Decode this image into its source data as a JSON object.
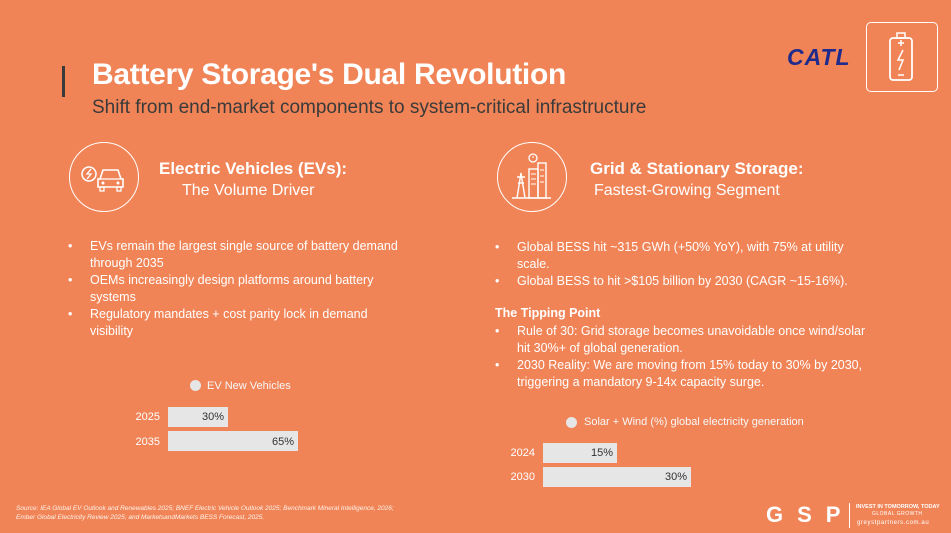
{
  "header": {
    "title": "Battery Storage's Dual Revolution",
    "subtitle": "Shift from end-market components to system-critical infrastructure"
  },
  "logo": {
    "text": "CATL"
  },
  "ev_section": {
    "title": "Electric Vehicles (EVs):",
    "subtitle": "The Volume Driver",
    "icon": "car-charging-icon",
    "bullets": [
      "EVs remain the largest single source of battery demand through 2035",
      "OEMs increasingly design platforms around battery systems",
      "Regulatory mandates + cost parity lock in demand visibility"
    ]
  },
  "grid_section": {
    "title": "Grid & Stationary Storage:",
    "subtitle": "Fastest-Growing Segment",
    "icon": "grid-tower-icon",
    "bullets": [
      "Global BESS hit ~315 GWh (+50% YoY), with 75% at utility scale.",
      "Global BESS to hit >$105 billion by 2030 (CAGR ~15-16%)."
    ],
    "tipping_title": "The Tipping Point",
    "tipping_bullets": [
      "Rule of 30: Grid storage becomes unavoidable once wind/solar hit 30%+ of global generation.",
      "2030 Reality: We are moving from 15% today to 30% by 2030, triggering a mandatory 9-14x capacity surge."
    ]
  },
  "chart_data": [
    {
      "type": "bar",
      "orientation": "horizontal",
      "categories": [
        "2025",
        "2035"
      ],
      "series": [
        {
          "name": "EV New Vehicles",
          "values": [
            30,
            65
          ]
        }
      ],
      "value_labels": [
        "30%",
        "65%"
      ],
      "xlim": [
        0,
        100
      ],
      "legend": "top",
      "grid": false,
      "color": "#e6e6e6"
    },
    {
      "type": "bar",
      "orientation": "horizontal",
      "categories": [
        "2024",
        "2030"
      ],
      "series": [
        {
          "name": "Solar + Wind (%) global electricity generation",
          "values": [
            15,
            30
          ]
        }
      ],
      "value_labels": [
        "15%",
        "30%"
      ],
      "xlim": [
        0,
        60
      ],
      "legend": "top",
      "grid": false,
      "color": "#e6e6e6"
    }
  ],
  "footer": {
    "source": "Source: IEA Global EV Outlook and Renewables 2025; BNEF Electric Vehicle Outlook 2025; Benchmark Mineral Intelligence, 2026; Ember Global Electricity Review 2025; and MarketsandMarkets BESS Forecast, 2025.",
    "brand": "GSP",
    "tagline1": "INVEST IN TOMORROW, TODAY",
    "tagline2": "GLOBAL GROWTH",
    "website": "greystpartners.com.au"
  },
  "colors": {
    "background": "#F08457",
    "bar": "#e6e6e6",
    "logo": "#1f2b8c",
    "title_bar": "#3a3a3a"
  }
}
